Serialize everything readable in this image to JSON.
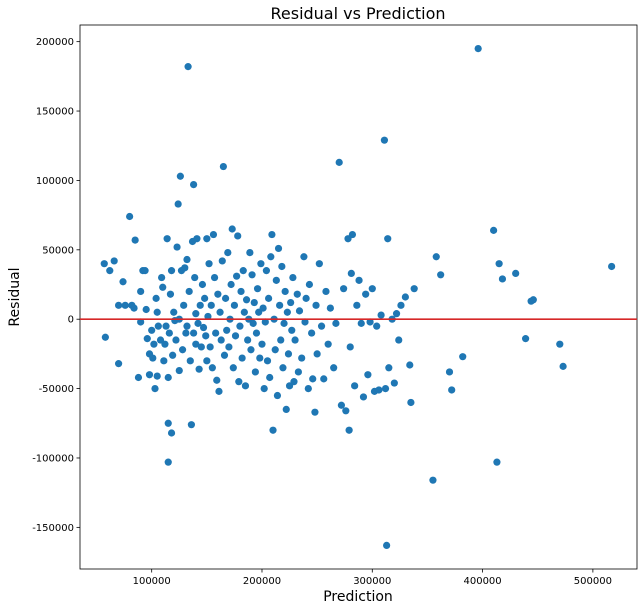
{
  "chart_data": {
    "type": "scatter",
    "title": "Residual vs Prediction",
    "xlabel": "Prediction",
    "ylabel": "Residual",
    "xlim": [
      35000,
      540000
    ],
    "ylim": [
      -180000,
      212000
    ],
    "xticks": [
      100000,
      200000,
      300000,
      400000,
      500000
    ],
    "yticks": [
      -150000,
      -100000,
      -50000,
      0,
      50000,
      100000,
      150000,
      200000
    ],
    "grid": false,
    "hline": {
      "y": 0,
      "color": "#d62728"
    },
    "marker_color": "#1f77b4",
    "points": [
      [
        57000,
        40000
      ],
      [
        58000,
        -13000
      ],
      [
        62000,
        35000
      ],
      [
        66000,
        42000
      ],
      [
        70000,
        -32000
      ],
      [
        70000,
        10000
      ],
      [
        74000,
        27000
      ],
      [
        76000,
        10000
      ],
      [
        80000,
        74000
      ],
      [
        82000,
        10000
      ],
      [
        84000,
        8000
      ],
      [
        85000,
        57000
      ],
      [
        88000,
        -42000
      ],
      [
        90000,
        -2000
      ],
      [
        90000,
        20000
      ],
      [
        92000,
        35000
      ],
      [
        94000,
        35000
      ],
      [
        95000,
        7000
      ],
      [
        96000,
        -14000
      ],
      [
        98000,
        -40000
      ],
      [
        98000,
        -25000
      ],
      [
        100000,
        -8000
      ],
      [
        101000,
        -28000
      ],
      [
        102000,
        -18000
      ],
      [
        103000,
        -50000
      ],
      [
        104000,
        15000
      ],
      [
        105000,
        5000
      ],
      [
        105000,
        -41000
      ],
      [
        106000,
        -5000
      ],
      [
        108000,
        -15000
      ],
      [
        109000,
        30000
      ],
      [
        110000,
        23000
      ],
      [
        111000,
        -30000
      ],
      [
        112000,
        -18000
      ],
      [
        113000,
        -5000
      ],
      [
        114000,
        58000
      ],
      [
        115000,
        -42000
      ],
      [
        115000,
        -75000
      ],
      [
        115000,
        -103000
      ],
      [
        116000,
        -10000
      ],
      [
        117000,
        18000
      ],
      [
        118000,
        -82000
      ],
      [
        118000,
        35000
      ],
      [
        119000,
        -26000
      ],
      [
        120000,
        5000
      ],
      [
        121000,
        -1000
      ],
      [
        122000,
        -15000
      ],
      [
        123000,
        52000
      ],
      [
        124000,
        83000
      ],
      [
        125000,
        0
      ],
      [
        125000,
        -37000
      ],
      [
        126000,
        103000
      ],
      [
        127000,
        35000
      ],
      [
        128000,
        -22000
      ],
      [
        129000,
        10000
      ],
      [
        130000,
        37000
      ],
      [
        131000,
        -10000
      ],
      [
        132000,
        43000
      ],
      [
        132000,
        -5000
      ],
      [
        133000,
        182000
      ],
      [
        134000,
        20000
      ],
      [
        135000,
        -30000
      ],
      [
        136000,
        -76000
      ],
      [
        137000,
        56000
      ],
      [
        138000,
        97000
      ],
      [
        138000,
        -10000
      ],
      [
        139000,
        30000
      ],
      [
        140000,
        4000
      ],
      [
        140000,
        -18000
      ],
      [
        141000,
        58000
      ],
      [
        142000,
        -3000
      ],
      [
        143000,
        -36000
      ],
      [
        144000,
        10000
      ],
      [
        145000,
        -20000
      ],
      [
        146000,
        25000
      ],
      [
        147000,
        -6000
      ],
      [
        148000,
        15000
      ],
      [
        149000,
        -12000
      ],
      [
        150000,
        -30000
      ],
      [
        150000,
        58000
      ],
      [
        151000,
        2000
      ],
      [
        152000,
        40000
      ],
      [
        153000,
        -20000
      ],
      [
        154000,
        10000
      ],
      [
        155000,
        -35000
      ],
      [
        156000,
        61000
      ],
      [
        157000,
        30000
      ],
      [
        158000,
        -10000
      ],
      [
        159000,
        -44000
      ],
      [
        160000,
        18000
      ],
      [
        161000,
        -52000
      ],
      [
        162000,
        5000
      ],
      [
        163000,
        -15000
      ],
      [
        164000,
        42000
      ],
      [
        165000,
        110000
      ],
      [
        166000,
        -26000
      ],
      [
        167000,
        15000
      ],
      [
        168000,
        -8000
      ],
      [
        169000,
        48000
      ],
      [
        170000,
        -20000
      ],
      [
        171000,
        0
      ],
      [
        172000,
        25000
      ],
      [
        173000,
        65000
      ],
      [
        174000,
        -35000
      ],
      [
        175000,
        10000
      ],
      [
        176000,
        -12000
      ],
      [
        177000,
        31000
      ],
      [
        178000,
        60000
      ],
      [
        179000,
        -45000
      ],
      [
        180000,
        -5000
      ],
      [
        181000,
        20000
      ],
      [
        182000,
        -28000
      ],
      [
        183000,
        35000
      ],
      [
        184000,
        5000
      ],
      [
        185000,
        -48000
      ],
      [
        186000,
        14000
      ],
      [
        187000,
        -15000
      ],
      [
        188000,
        0
      ],
      [
        189000,
        48000
      ],
      [
        190000,
        -22000
      ],
      [
        191000,
        32000
      ],
      [
        192000,
        -3000
      ],
      [
        193000,
        12000
      ],
      [
        194000,
        -38000
      ],
      [
        195000,
        -10000
      ],
      [
        196000,
        22000
      ],
      [
        197000,
        5000
      ],
      [
        198000,
        -28000
      ],
      [
        199000,
        40000
      ],
      [
        200000,
        -18000
      ],
      [
        201000,
        8000
      ],
      [
        202000,
        -50000
      ],
      [
        203000,
        -2000
      ],
      [
        204000,
        35000
      ],
      [
        205000,
        -30000
      ],
      [
        206000,
        15000
      ],
      [
        207000,
        -42000
      ],
      [
        208000,
        45000
      ],
      [
        209000,
        61000
      ],
      [
        210000,
        -80000
      ],
      [
        211000,
        0
      ],
      [
        212000,
        -22000
      ],
      [
        213000,
        28000
      ],
      [
        214000,
        -55000
      ],
      [
        215000,
        51000
      ],
      [
        216000,
        10000
      ],
      [
        217000,
        -15000
      ],
      [
        218000,
        38000
      ],
      [
        219000,
        -35000
      ],
      [
        220000,
        -3000
      ],
      [
        221000,
        20000
      ],
      [
        222000,
        -65000
      ],
      [
        223000,
        5000
      ],
      [
        224000,
        -25000
      ],
      [
        225000,
        -48000
      ],
      [
        226000,
        12000
      ],
      [
        227000,
        -8000
      ],
      [
        228000,
        30000
      ],
      [
        229000,
        -45000
      ],
      [
        230000,
        -15000
      ],
      [
        232000,
        18000
      ],
      [
        233000,
        -38000
      ],
      [
        234000,
        6000
      ],
      [
        236000,
        -28000
      ],
      [
        238000,
        45000
      ],
      [
        239000,
        -2000
      ],
      [
        240000,
        15000
      ],
      [
        242000,
        -50000
      ],
      [
        243000,
        25000
      ],
      [
        245000,
        -10000
      ],
      [
        246000,
        -43000
      ],
      [
        248000,
        -67000
      ],
      [
        249000,
        10000
      ],
      [
        250000,
        -25000
      ],
      [
        252000,
        40000
      ],
      [
        254000,
        -5000
      ],
      [
        256000,
        -43000
      ],
      [
        258000,
        20000
      ],
      [
        260000,
        -18000
      ],
      [
        262000,
        8000
      ],
      [
        265000,
        -35000
      ],
      [
        267000,
        -3000
      ],
      [
        270000,
        113000
      ],
      [
        272000,
        -62000
      ],
      [
        274000,
        22000
      ],
      [
        276000,
        -66000
      ],
      [
        278000,
        58000
      ],
      [
        279000,
        -80000
      ],
      [
        280000,
        -20000
      ],
      [
        281000,
        33000
      ],
      [
        282000,
        61000
      ],
      [
        284000,
        -48000
      ],
      [
        286000,
        10000
      ],
      [
        288000,
        28000
      ],
      [
        290000,
        -3000
      ],
      [
        292000,
        -56000
      ],
      [
        294000,
        18000
      ],
      [
        296000,
        -40000
      ],
      [
        298000,
        -2000
      ],
      [
        300000,
        22000
      ],
      [
        302000,
        -52000
      ],
      [
        304000,
        -5000
      ],
      [
        306000,
        -51000
      ],
      [
        308000,
        3000
      ],
      [
        311000,
        129000
      ],
      [
        312000,
        -50000
      ],
      [
        313000,
        -163000
      ],
      [
        314000,
        58000
      ],
      [
        315000,
        -35000
      ],
      [
        318000,
        0
      ],
      [
        320000,
        -46000
      ],
      [
        322000,
        4000
      ],
      [
        324000,
        -15000
      ],
      [
        326000,
        10000
      ],
      [
        330000,
        16000
      ],
      [
        334000,
        -33000
      ],
      [
        335000,
        -60000
      ],
      [
        338000,
        22000
      ],
      [
        355000,
        -116000
      ],
      [
        358000,
        45000
      ],
      [
        362000,
        32000
      ],
      [
        370000,
        -38000
      ],
      [
        372000,
        -51000
      ],
      [
        382000,
        -27000
      ],
      [
        396000,
        195000
      ],
      [
        410000,
        64000
      ],
      [
        413000,
        -103000
      ],
      [
        415000,
        40000
      ],
      [
        418000,
        29000
      ],
      [
        430000,
        33000
      ],
      [
        439000,
        -14000
      ],
      [
        444000,
        13000
      ],
      [
        446000,
        14000
      ],
      [
        470000,
        -18000
      ],
      [
        473000,
        -34000
      ],
      [
        517000,
        38000
      ]
    ]
  }
}
